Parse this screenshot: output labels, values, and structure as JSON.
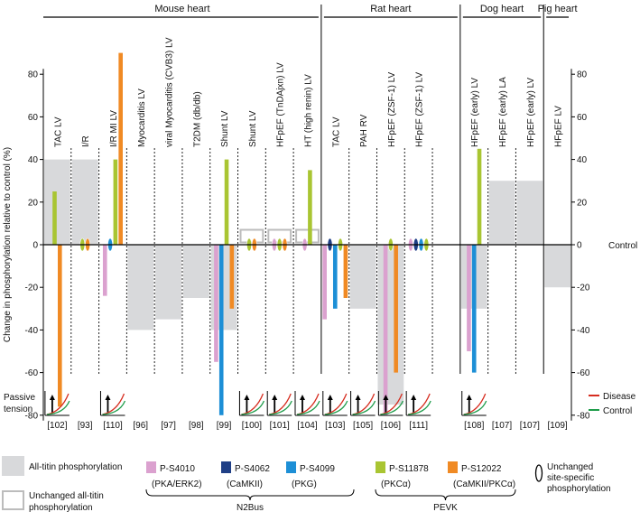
{
  "chart_data": {
    "type": "bar",
    "ylabel": "Change in phosphorylation relative to control (%)",
    "ylim": [
      -85,
      92
    ],
    "yticks": [
      80,
      60,
      40,
      20,
      0,
      -20,
      -40,
      -60,
      -80
    ],
    "tick_labels": [
      "80",
      "60",
      "40",
      "20",
      "0",
      "-20",
      "-40",
      "-60",
      "-80"
    ],
    "control_label": "Control",
    "groups": [
      {
        "name": "Mouse heart",
        "start": 0,
        "end": 10
      },
      {
        "name": "Rat heart",
        "start": 10,
        "end": 15
      },
      {
        "name": "Dog heart",
        "start": 15,
        "end": 18
      },
      {
        "name": "Pig heart",
        "start": 18,
        "end": 19
      }
    ],
    "conditions": [
      {
        "label": "TAC LV",
        "ref": "[102]",
        "tension": true,
        "all_titin": 40,
        "sites": [
          {
            "site": "s11878",
            "value": 25
          },
          {
            "site": "s12022",
            "value": -76
          }
        ]
      },
      {
        "label": "I/R",
        "ref": "[93]",
        "tension": false,
        "all_titin": 40,
        "sites": [
          {
            "site": "s11878",
            "value": 0
          },
          {
            "site": "s12022",
            "value": 0
          }
        ]
      },
      {
        "label": "I/R  MI LV",
        "ref": "[110]",
        "tension": true,
        "all_titin": null,
        "sites": [
          {
            "site": "s4010",
            "value": -24
          },
          {
            "site": "s4099",
            "value": 0
          },
          {
            "site": "s11878",
            "value": 40
          },
          {
            "site": "s12022",
            "value": 90
          }
        ]
      },
      {
        "label": "Myocarditis LV",
        "ref": "[96]",
        "tension": false,
        "all_titin": -40,
        "sites": []
      },
      {
        "label": "viral Myocarditis (CVB3) LV",
        "ref": "[97]",
        "tension": false,
        "all_titin": -35,
        "sites": []
      },
      {
        "label": "T2DM (db/db)",
        "ref": "[98]",
        "tension": false,
        "all_titin": -25,
        "sites": []
      },
      {
        "label": "Shunt LV",
        "ref": "[99]",
        "tension": false,
        "all_titin": -40,
        "sites": [
          {
            "site": "s4010",
            "value": -55
          },
          {
            "site": "s4099",
            "value": -80
          },
          {
            "site": "s11878",
            "value": 40
          },
          {
            "site": "s12022",
            "value": -30
          }
        ]
      },
      {
        "label": "Shunt LV",
        "ref": "[100]",
        "tension": true,
        "all_titin": 0,
        "sites": [
          {
            "site": "s11878",
            "value": 0
          },
          {
            "site": "s12022",
            "value": 0
          }
        ]
      },
      {
        "label": "HFpEF (TnDAjxn) LV",
        "ref": "[101]",
        "tension": true,
        "all_titin": 0,
        "sites": [
          {
            "site": "s4010",
            "value": 0
          },
          {
            "site": "s11878",
            "value": 0
          },
          {
            "site": "s12022",
            "value": 0
          }
        ]
      },
      {
        "label": "HT  (high renin) LV",
        "ref": "[104]",
        "tension": true,
        "all_titin": 0,
        "sites": [
          {
            "site": "s4010",
            "value": 0
          },
          {
            "site": "s11878",
            "value": 35
          }
        ]
      },
      {
        "label": "TAC LV",
        "ref": "[103]",
        "tension": true,
        "all_titin": null,
        "sites": [
          {
            "site": "s4010",
            "value": -35
          },
          {
            "site": "s4062",
            "value": 0
          },
          {
            "site": "s4099",
            "value": -30
          },
          {
            "site": "s11878",
            "value": 0
          },
          {
            "site": "s12022",
            "value": -25
          }
        ]
      },
      {
        "label": "PAH RV",
        "ref": "[105]",
        "tension": true,
        "all_titin": -30,
        "sites": []
      },
      {
        "label": "HFpEF (ZSF-1)  LV",
        "ref": "[106]",
        "tension": true,
        "all_titin": -75,
        "sites": [
          {
            "site": "s4010",
            "value": -80
          },
          {
            "site": "s11878",
            "value": 0
          },
          {
            "site": "s12022",
            "value": -60
          }
        ]
      },
      {
        "label": "HFpEF (ZSF-1)  LV",
        "ref": "[111]",
        "tension": true,
        "all_titin": null,
        "sites": [
          {
            "site": "s4010",
            "value": 0
          },
          {
            "site": "s4062",
            "value": 0
          },
          {
            "site": "s4099",
            "value": 0
          },
          {
            "site": "s11878",
            "value": 0
          }
        ]
      },
      {
        "label": "",
        "ref": "",
        "tension": false,
        "all_titin": null,
        "sites": []
      },
      {
        "label": "HFpEF (early) LV",
        "ref": "[108]",
        "tension": true,
        "all_titin": -30,
        "sites": [
          {
            "site": "s4010",
            "value": -50
          },
          {
            "site": "s4099",
            "value": -60
          },
          {
            "site": "s11878",
            "value": 45
          }
        ]
      },
      {
        "label": "HFpEF (early) LA",
        "ref": "[107]",
        "tension": false,
        "all_titin": 30,
        "sites": []
      },
      {
        "label": "HFpEF (early) LV",
        "ref": "[107]",
        "tension": false,
        "all_titin": 30,
        "sites": []
      },
      {
        "label": "HFpEF LV",
        "ref": "[109]",
        "tension": false,
        "all_titin": -20,
        "sites": []
      }
    ],
    "passive_tension_label": [
      "Passive",
      "tension"
    ],
    "tension_legend": [
      {
        "label": "Disease",
        "color": "#d62d20"
      },
      {
        "label": "Control",
        "color": "#1e9c4a"
      }
    ],
    "site_legend": [
      {
        "key": "s4010",
        "label": "P-S4010",
        "sub": "(PKA/ERK2)",
        "color": "#dba1cf"
      },
      {
        "key": "s4062",
        "label": "P-S4062",
        "sub": "(CaMKII)",
        "color": "#1f3f86"
      },
      {
        "key": "s4099",
        "label": "P-S4099",
        "sub": "(PKG)",
        "color": "#1d8fd6"
      },
      {
        "key": "s11878",
        "label": "P-S11878",
        "sub": "(PKCα)",
        "color": "#a9c532"
      },
      {
        "key": "s12022",
        "label": "P-S12022",
        "sub": "(CaMKII/PKCα)",
        "color": "#f08a24"
      }
    ],
    "all_titin_legend": "All-titin phosphorylation",
    "unchanged_all_titin_legend": [
      "Unchanged all-titin",
      "phosphorylation"
    ],
    "unchanged_site_legend": [
      "Unchanged",
      "site-specific",
      "phosphorylation"
    ],
    "region_labels": [
      {
        "name": "N2Bus",
        "start": "s4010",
        "end": "s4099"
      },
      {
        "name": "PEVK",
        "start": "s11878",
        "end": "s12022"
      }
    ],
    "all_titin_color": "#d8d9db"
  }
}
